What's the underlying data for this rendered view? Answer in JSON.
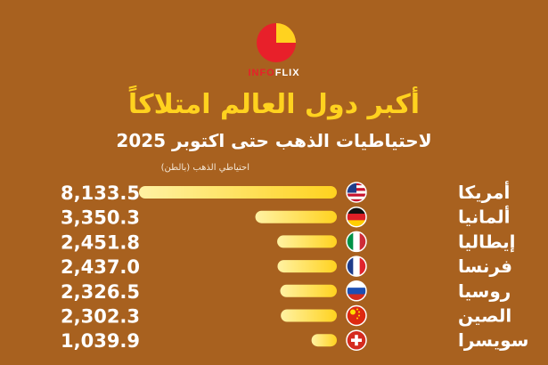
{
  "brand": {
    "part1": "INFO",
    "part2": "FLIX"
  },
  "colors": {
    "background": "#a8611f",
    "title": "#ffd21f",
    "bar_start": "#fff2a3",
    "bar_end": "#ffd21f",
    "logo": "#e8202a"
  },
  "chart_data": {
    "type": "bar",
    "orientation": "horizontal",
    "title": "أكبر دول العالم امتلاكاً",
    "subtitle": "لاحتياطيات الذهب حتى اكتوبر 2025",
    "xlabel": "احتياطي الذهب (بالطن)",
    "categories": [
      "أمريكا",
      "ألمانيا",
      "إيطاليا",
      "فرنسا",
      "روسيا",
      "الصين",
      "سويسرا"
    ],
    "values": [
      8133.5,
      3350.3,
      2451.8,
      2437.0,
      2326.5,
      2302.3,
      1039.9
    ],
    "value_labels": [
      "8,133.5",
      "3,350.3",
      "2,451.8",
      "2,437.0",
      "2,326.5",
      "2,302.3",
      "1,039.9"
    ],
    "flags": [
      "us-flag-icon",
      "germany-flag-icon",
      "italy-flag-icon",
      "france-flag-icon",
      "russia-flag-icon",
      "china-flag-icon",
      "switzerland-flag-icon"
    ]
  }
}
